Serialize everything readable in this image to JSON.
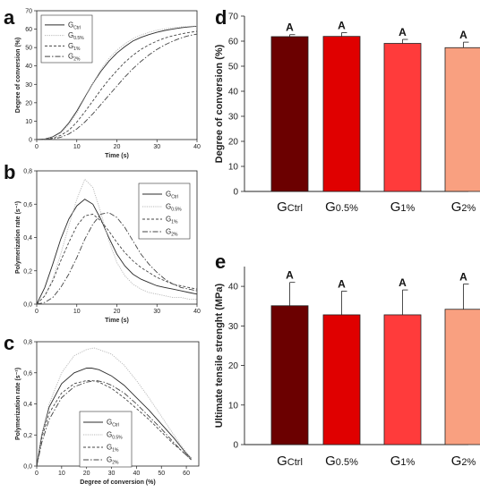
{
  "figure": {
    "panels": [
      "a",
      "b",
      "c",
      "d",
      "e"
    ]
  },
  "colors": {
    "ctrl": "#6b0000",
    "g05": "#e00000",
    "g1": "#ff3b3b",
    "g2": "#f9a080",
    "lines": [
      "#2b2b2b",
      "#b8b8b8",
      "#444444",
      "#444444"
    ]
  },
  "chart_data": [
    {
      "panel": "a",
      "type": "line",
      "xlabel": "Time (s)",
      "ylabel": "Degree of conversion (%)",
      "xlim": [
        0,
        40
      ],
      "ylim": [
        0,
        70
      ],
      "xticks": [
        0,
        10,
        20,
        30,
        40
      ],
      "yticks": [
        0,
        10,
        20,
        30,
        40,
        50,
        60,
        70
      ],
      "legend_position": "top-left",
      "series": [
        {
          "base": "G",
          "sub": "Ctrl",
          "style": "solid",
          "x": [
            0,
            2,
            4,
            6,
            8,
            10,
            12,
            14,
            16,
            18,
            20,
            22,
            24,
            26,
            28,
            30,
            32,
            34,
            36,
            38,
            40
          ],
          "y": [
            0,
            0.3,
            1.5,
            4,
            9,
            15.5,
            23,
            30.5,
            37,
            42.5,
            47,
            50.5,
            53.5,
            55.5,
            57,
            58.3,
            59.3,
            60.1,
            60.7,
            61.2,
            61.6
          ]
        },
        {
          "base": "G",
          "sub": "0.5%",
          "style": "dotted",
          "x": [
            0,
            2,
            4,
            6,
            8,
            10,
            12,
            14,
            16,
            18,
            20,
            22,
            24,
            26,
            28,
            30,
            32,
            34,
            36,
            38,
            40
          ],
          "y": [
            0,
            0.2,
            1.2,
            3.5,
            8,
            14.5,
            22.5,
            30.5,
            38,
            44,
            48.5,
            52,
            54.8,
            56.8,
            58.3,
            59.4,
            60.2,
            60.8,
            61.2,
            61.5,
            61.7
          ]
        },
        {
          "base": "G",
          "sub": "1%",
          "style": "dashed",
          "x": [
            0,
            2,
            4,
            6,
            8,
            10,
            12,
            14,
            16,
            18,
            20,
            22,
            24,
            26,
            28,
            30,
            32,
            34,
            36,
            38,
            40
          ],
          "y": [
            0,
            0.2,
            0.8,
            2.3,
            5,
            9.5,
            15,
            21,
            27,
            32.5,
            37.5,
            42,
            45.8,
            49,
            51.5,
            53.5,
            55.2,
            56.4,
            57.4,
            58.2,
            58.8
          ]
        },
        {
          "base": "G",
          "sub": "2%",
          "style": "dashdot",
          "x": [
            0,
            2,
            4,
            6,
            8,
            10,
            12,
            14,
            16,
            18,
            20,
            22,
            24,
            26,
            28,
            30,
            32,
            34,
            36,
            38,
            40
          ],
          "y": [
            0,
            0.1,
            0.4,
            1.2,
            3,
            5.8,
            9.5,
            14,
            19,
            24,
            29,
            34,
            38.5,
            42.5,
            46,
            49,
            51.5,
            53.5,
            55.2,
            56.5,
            57.3
          ]
        }
      ]
    },
    {
      "panel": "b",
      "type": "line",
      "xlabel": "Time (s)",
      "ylabel": "Polymerization rate (s⁻¹)",
      "xlim": [
        0,
        40
      ],
      "ylim": [
        0,
        0.8
      ],
      "xticks": [
        0,
        10,
        20,
        30,
        40
      ],
      "yticks": [
        "0,0",
        "0,2",
        "0,4",
        "0,6",
        "0,8"
      ],
      "legend_position": "top-right",
      "series": [
        {
          "base": "G",
          "sub": "Ctrl",
          "style": "solid",
          "x": [
            0,
            2,
            4,
            6,
            8,
            10,
            12,
            14,
            16,
            18,
            20,
            22,
            24,
            26,
            28,
            30,
            32,
            34,
            36,
            38,
            40
          ],
          "y": [
            0,
            0.1,
            0.24,
            0.39,
            0.51,
            0.59,
            0.63,
            0.6,
            0.51,
            0.4,
            0.3,
            0.23,
            0.18,
            0.15,
            0.13,
            0.11,
            0.1,
            0.09,
            0.08,
            0.07,
            0.06
          ]
        },
        {
          "base": "G",
          "sub": "0.5%",
          "style": "dotted",
          "x": [
            0,
            2,
            4,
            6,
            8,
            10,
            12,
            14,
            16,
            18,
            20,
            22,
            24,
            26,
            28,
            30,
            32,
            34,
            36,
            38,
            40
          ],
          "y": [
            0,
            0.05,
            0.15,
            0.3,
            0.47,
            0.63,
            0.75,
            0.7,
            0.55,
            0.38,
            0.25,
            0.17,
            0.12,
            0.09,
            0.07,
            0.06,
            0.05,
            0.04,
            0.04,
            0.03,
            0.03
          ]
        },
        {
          "base": "G",
          "sub": "1%",
          "style": "dashed",
          "x": [
            0,
            2,
            4,
            6,
            8,
            10,
            12,
            14,
            16,
            18,
            20,
            22,
            24,
            26,
            28,
            30,
            32,
            34,
            36,
            38,
            40
          ],
          "y": [
            0,
            0.05,
            0.14,
            0.26,
            0.37,
            0.47,
            0.53,
            0.54,
            0.5,
            0.44,
            0.37,
            0.31,
            0.26,
            0.22,
            0.19,
            0.16,
            0.14,
            0.12,
            0.11,
            0.1,
            0.09
          ]
        },
        {
          "base": "G",
          "sub": "2%",
          "style": "dashdot",
          "x": [
            0,
            2,
            4,
            6,
            8,
            10,
            12,
            14,
            16,
            18,
            20,
            22,
            24,
            26,
            28,
            30,
            32,
            34,
            36,
            38,
            40
          ],
          "y": [
            0,
            0.01,
            0.04,
            0.1,
            0.18,
            0.28,
            0.39,
            0.48,
            0.54,
            0.55,
            0.52,
            0.46,
            0.38,
            0.3,
            0.24,
            0.19,
            0.15,
            0.12,
            0.1,
            0.09,
            0.08
          ]
        }
      ]
    },
    {
      "panel": "c",
      "type": "line",
      "xlabel": "Degree of conversion (%)",
      "ylabel": "Polymerization rate (s⁻¹)",
      "xlim": [
        0,
        65
      ],
      "ylim": [
        0,
        0.8
      ],
      "xticks": [
        0,
        10,
        20,
        30,
        40,
        50,
        60
      ],
      "yticks": [
        "0,0",
        "0,2",
        "0,4",
        "0,6",
        "0,8"
      ],
      "legend_position": "bottom-right",
      "series": [
        {
          "base": "G",
          "sub": "Ctrl",
          "style": "solid",
          "x": [
            0,
            2,
            5,
            10,
            15,
            20,
            22,
            25,
            30,
            35,
            40,
            45,
            50,
            55,
            58,
            60,
            62
          ],
          "y": [
            0,
            0.2,
            0.38,
            0.53,
            0.6,
            0.63,
            0.63,
            0.62,
            0.58,
            0.52,
            0.44,
            0.36,
            0.27,
            0.18,
            0.12,
            0.08,
            0.05
          ]
        },
        {
          "base": "G",
          "sub": "0.5%",
          "style": "dotted",
          "x": [
            0,
            2,
            5,
            10,
            15,
            20,
            23,
            25,
            30,
            35,
            40,
            45,
            50,
            55,
            58,
            60,
            62
          ],
          "y": [
            0,
            0.2,
            0.4,
            0.6,
            0.71,
            0.75,
            0.76,
            0.75,
            0.72,
            0.65,
            0.55,
            0.44,
            0.32,
            0.2,
            0.13,
            0.09,
            0.05
          ]
        },
        {
          "base": "G",
          "sub": "1%",
          "style": "dashed",
          "x": [
            0,
            2,
            5,
            10,
            15,
            20,
            22,
            25,
            30,
            35,
            40,
            45,
            50,
            55,
            58,
            60,
            62
          ],
          "y": [
            0,
            0.18,
            0.34,
            0.47,
            0.53,
            0.55,
            0.55,
            0.54,
            0.5,
            0.44,
            0.37,
            0.3,
            0.22,
            0.14,
            0.1,
            0.07,
            0.04
          ]
        },
        {
          "base": "G",
          "sub": "2%",
          "style": "dashdot",
          "x": [
            0,
            2,
            5,
            10,
            15,
            20,
            24,
            27,
            30,
            35,
            40,
            45,
            50,
            55,
            58,
            60,
            62
          ],
          "y": [
            0,
            0.15,
            0.3,
            0.44,
            0.51,
            0.54,
            0.55,
            0.54,
            0.52,
            0.47,
            0.4,
            0.32,
            0.24,
            0.15,
            0.1,
            0.07,
            0.04
          ]
        }
      ]
    },
    {
      "panel": "d",
      "type": "bar",
      "ylabel": "Degree of conversion (%)",
      "ylim": [
        0,
        70
      ],
      "yticks": [
        0,
        10,
        20,
        30,
        40,
        50,
        60,
        70
      ],
      "categories": [
        {
          "base": "G",
          "sub": "Ctrl"
        },
        {
          "base": "G",
          "sub": "0.5%"
        },
        {
          "base": "G",
          "sub": "1%"
        },
        {
          "base": "G",
          "sub": "2%"
        }
      ],
      "values": [
        61.8,
        61.9,
        59.1,
        57.4
      ],
      "errors": [
        0.8,
        1.5,
        1.6,
        2.2
      ],
      "letters": [
        "A",
        "A",
        "A",
        "A"
      ]
    },
    {
      "panel": "e",
      "type": "bar",
      "ylabel": "Ultimate tensile strenght (MPa)",
      "ylim": [
        0,
        45
      ],
      "yticks": [
        0,
        10,
        20,
        30,
        40
      ],
      "categories": [
        {
          "base": "G",
          "sub": "Ctrl"
        },
        {
          "base": "G",
          "sub": "0.5%"
        },
        {
          "base": "G",
          "sub": "1%"
        },
        {
          "base": "G",
          "sub": "2%"
        }
      ],
      "values": [
        35.1,
        32.8,
        32.8,
        34.2
      ],
      "errors": [
        5.9,
        6.0,
        6.3,
        6.4
      ],
      "letters": [
        "A",
        "A",
        "A",
        "A"
      ]
    }
  ]
}
